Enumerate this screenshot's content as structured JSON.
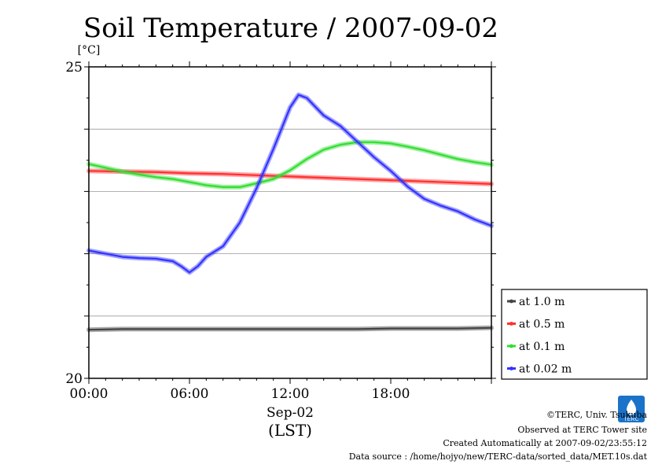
{
  "chart_data": {
    "type": "line",
    "title": "Soil Temperature / 2007-09-02",
    "ylabel": "[°C]",
    "ylim": [
      20,
      25
    ],
    "xlim": [
      0,
      24
    ],
    "y_ticks": [
      20,
      25
    ],
    "y_tick_labels": [
      "20",
      "25"
    ],
    "x_ticks": [
      0,
      6,
      12,
      18
    ],
    "x_tick_labels": [
      "00:00",
      "06:00",
      "12:00",
      "18:00"
    ],
    "xlabel_lines": [
      "Sep-02",
      "(LST)"
    ],
    "grid": true,
    "legend_position": "right",
    "series": [
      {
        "name": "at 1.0 m",
        "color": "#444444",
        "x": [
          0,
          2,
          4,
          6,
          8,
          10,
          12,
          14,
          16,
          18,
          20,
          22,
          24
        ],
        "y": [
          20.78,
          20.79,
          20.79,
          20.79,
          20.79,
          20.79,
          20.79,
          20.79,
          20.79,
          20.8,
          20.8,
          20.8,
          20.81
        ]
      },
      {
        "name": "at 0.5 m",
        "color": "#ff3030",
        "x": [
          0,
          2,
          4,
          6,
          8,
          10,
          12,
          14,
          16,
          18,
          20,
          22,
          24
        ],
        "y": [
          23.33,
          23.32,
          23.31,
          23.29,
          23.28,
          23.26,
          23.24,
          23.22,
          23.2,
          23.18,
          23.16,
          23.14,
          23.12
        ]
      },
      {
        "name": "at 0.1 m",
        "color": "#33dd33",
        "x": [
          0,
          1,
          2,
          3,
          4,
          5,
          6,
          7,
          8,
          9,
          10,
          11,
          12,
          13,
          14,
          15,
          16,
          17,
          18,
          19,
          20,
          21,
          22,
          23,
          24
        ],
        "y": [
          23.44,
          23.38,
          23.32,
          23.27,
          23.23,
          23.2,
          23.15,
          23.1,
          23.07,
          23.07,
          23.13,
          23.2,
          23.34,
          23.52,
          23.67,
          23.75,
          23.79,
          23.79,
          23.77,
          23.72,
          23.66,
          23.59,
          23.52,
          23.47,
          23.43
        ]
      },
      {
        "name": "at 0.02 m",
        "color": "#3333ff",
        "x": [
          0,
          1,
          2,
          3,
          4,
          5,
          5.5,
          6,
          6.5,
          7,
          8,
          9,
          10,
          11,
          12,
          12.5,
          13,
          14,
          15,
          16,
          17,
          18,
          19,
          20,
          21,
          22,
          23,
          24
        ],
        "y": [
          22.05,
          22.0,
          21.95,
          21.93,
          21.92,
          21.88,
          21.8,
          21.7,
          21.8,
          21.95,
          22.12,
          22.5,
          23.05,
          23.68,
          24.35,
          24.55,
          24.5,
          24.22,
          24.05,
          23.8,
          23.55,
          23.33,
          23.08,
          22.88,
          22.77,
          22.68,
          22.55,
          22.45
        ]
      }
    ]
  },
  "legend": {
    "items": [
      {
        "label": "at 1.0 m",
        "color": "#444444"
      },
      {
        "label": "at 0.5 m",
        "color": "#ff3030"
      },
      {
        "label": "at 0.1 m",
        "color": "#33dd33"
      },
      {
        "label": "at 0.02 m",
        "color": "#3333ff"
      }
    ]
  },
  "footer": {
    "line1": "©TERC, Univ. Tsukuba",
    "line2": "Observed at TERC Tower site",
    "line3": "Created Automatically at 2007-09-02/23:55:12",
    "line4": "Data source : /home/hojyo/new/TERC-data/sorted_data/MET.10s.dat",
    "logo_text": "TERC"
  }
}
